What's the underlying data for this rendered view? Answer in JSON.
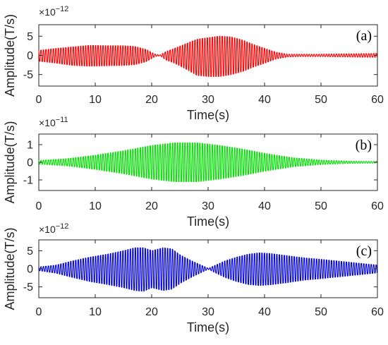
{
  "chart_data": [
    {
      "type": "line",
      "panel_label": "(a)",
      "color": "#ff0000",
      "xlabel": "Time(s)",
      "ylabel": "Amplitude(T/s)",
      "y_exponent_base": "×10",
      "y_exponent": "−12",
      "xlim": [
        0,
        60
      ],
      "ylim": [
        -8,
        8
      ],
      "xticks": [
        "0",
        "10",
        "20",
        "30",
        "40",
        "50",
        "60"
      ],
      "yticks": [
        "5",
        "0",
        "-5"
      ],
      "envelope": {
        "x": [
          0,
          3,
          6,
          9,
          12,
          15,
          17,
          19,
          20.5,
          21.5,
          22.5,
          24,
          26,
          28,
          30,
          32,
          34,
          36,
          38,
          40,
          42,
          44,
          46,
          50,
          55,
          60
        ],
        "upper": [
          1.3,
          1.8,
          2.2,
          2.6,
          2.5,
          2.5,
          2.3,
          1.5,
          0.3,
          0.1,
          1.0,
          1.8,
          3.0,
          4.2,
          4.6,
          5.0,
          4.8,
          4.0,
          2.8,
          1.8,
          0.8,
          0.3,
          0.3,
          0.3,
          0.4,
          0.5
        ],
        "lower": [
          -1.5,
          -2.0,
          -2.6,
          -2.8,
          -2.7,
          -2.6,
          -2.4,
          -1.6,
          -0.3,
          -0.1,
          -1.2,
          -2.0,
          -3.5,
          -5.2,
          -5.5,
          -5.5,
          -5.0,
          -4.2,
          -3.0,
          -2.0,
          -0.9,
          -0.4,
          -0.3,
          -0.3,
          -0.4,
          -0.5
        ]
      }
    },
    {
      "type": "line",
      "panel_label": "(b)",
      "color": "#00e000",
      "xlabel": "Time(s)",
      "ylabel": "Amplitude(T/s)",
      "y_exponent_base": "×10",
      "y_exponent": "−11",
      "xlim": [
        0,
        60
      ],
      "ylim": [
        -1.6,
        1.6
      ],
      "xticks": [
        "0",
        "10",
        "20",
        "30",
        "40",
        "50",
        "60"
      ],
      "yticks": [
        "1",
        "0",
        "-1"
      ],
      "envelope": {
        "x": [
          0,
          5,
          10,
          15,
          20,
          24,
          28,
          32,
          36,
          40,
          45,
          50,
          55,
          60
        ],
        "upper": [
          0.1,
          0.2,
          0.4,
          0.65,
          0.95,
          1.1,
          1.1,
          0.95,
          0.75,
          0.5,
          0.25,
          0.12,
          0.06,
          0.04
        ],
        "lower": [
          -0.1,
          -0.2,
          -0.4,
          -0.65,
          -0.95,
          -1.1,
          -1.1,
          -0.95,
          -0.75,
          -0.5,
          -0.25,
          -0.12,
          -0.06,
          -0.04
        ]
      }
    },
    {
      "type": "line",
      "panel_label": "(c)",
      "color": "#0000e0",
      "xlabel": "Time(s)",
      "ylabel": "Amplitude(T/s)",
      "y_exponent_base": "×10",
      "y_exponent": "−12",
      "xlim": [
        0,
        60
      ],
      "ylim": [
        -8,
        8
      ],
      "xticks": [
        "0",
        "10",
        "20",
        "30",
        "40",
        "50",
        "60"
      ],
      "yticks": [
        "5",
        "0",
        "-5"
      ],
      "envelope": {
        "x": [
          0,
          3,
          6,
          9,
          12,
          15,
          17,
          18.5,
          20,
          22,
          23.5,
          25,
          27,
          29,
          30,
          31,
          33,
          35,
          37,
          39,
          41,
          44,
          47,
          50,
          55,
          60
        ],
        "upper": [
          0.5,
          1.0,
          2.2,
          3.2,
          4.0,
          5.0,
          5.8,
          5.8,
          5.0,
          5.8,
          5.5,
          3.8,
          2.2,
          0.8,
          0.1,
          0.8,
          2.2,
          3.2,
          4.0,
          4.4,
          4.2,
          3.6,
          3.0,
          2.6,
          1.8,
          1.0
        ],
        "lower": [
          -0.5,
          -1.2,
          -2.4,
          -3.5,
          -4.3,
          -5.2,
          -6.0,
          -6.2,
          -5.2,
          -6.0,
          -5.6,
          -4.0,
          -2.3,
          -0.8,
          -0.1,
          -0.9,
          -2.4,
          -3.5,
          -4.3,
          -4.6,
          -4.4,
          -3.8,
          -3.1,
          -2.7,
          -1.9,
          -1.1
        ]
      }
    }
  ]
}
